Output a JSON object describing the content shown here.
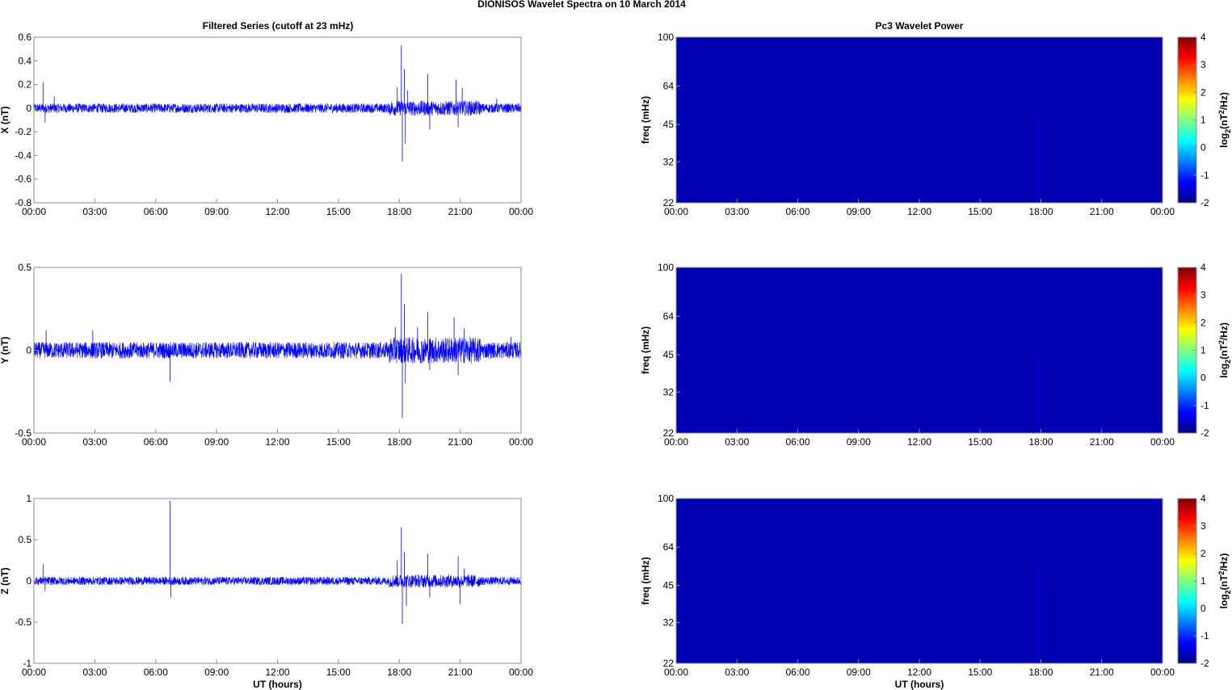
{
  "figure": {
    "title": "DIONISOS Wavelet Spectra on 10 March     2014",
    "left_column_title": "Filtered Series (cutoff at 23 mHz)",
    "right_column_title": "Pc3 Wavelet Power",
    "xlabel": "UT (hours)"
  },
  "chart_data": [
    {
      "type": "line",
      "name": "filtered-x",
      "ylabel": "X (nT)",
      "xlabel": "",
      "x_ticks": [
        "00:00",
        "03:00",
        "06:00",
        "09:00",
        "12:00",
        "15:00",
        "18:00",
        "21:00",
        "00:00"
      ],
      "xlim": [
        0,
        24
      ],
      "ylim": [
        -0.8,
        0.6
      ],
      "y_ticks": [
        -0.8,
        -0.6,
        -0.4,
        -0.2,
        0,
        0.2,
        0.4,
        0.6
      ],
      "y_tick_labels": [
        "-0.8",
        "-0.6",
        "-0.4",
        "-0.2",
        "0",
        "0.2",
        "0.4",
        "0.6"
      ],
      "series_color": "#0000ff",
      "baseline_amplitude": 0.04,
      "spikes": [
        {
          "x": 0.45,
          "y": 0.22
        },
        {
          "x": 0.55,
          "y": -0.12
        },
        {
          "x": 1.0,
          "y": 0.1
        },
        {
          "x": 17.9,
          "y": 0.18
        },
        {
          "x": 18.1,
          "y": 0.53
        },
        {
          "x": 18.15,
          "y": -0.45
        },
        {
          "x": 18.25,
          "y": 0.33
        },
        {
          "x": 18.3,
          "y": -0.3
        },
        {
          "x": 18.4,
          "y": 0.15
        },
        {
          "x": 19.4,
          "y": 0.29
        },
        {
          "x": 19.5,
          "y": -0.18
        },
        {
          "x": 20.8,
          "y": 0.24
        },
        {
          "x": 20.9,
          "y": -0.16
        },
        {
          "x": 21.1,
          "y": 0.17
        },
        {
          "x": 22.8,
          "y": 0.08
        }
      ]
    },
    {
      "type": "line",
      "name": "filtered-y",
      "ylabel": "Y (nT)",
      "xlabel": "",
      "x_ticks": [
        "00:00",
        "03:00",
        "06:00",
        "09:00",
        "12:00",
        "15:00",
        "18:00",
        "21:00",
        "00:00"
      ],
      "xlim": [
        0,
        24
      ],
      "ylim": [
        -0.5,
        0.5
      ],
      "y_ticks": [
        -0.5,
        0,
        0.5
      ],
      "y_tick_labels": [
        "-0.5",
        "0",
        "0.5"
      ],
      "series_color": "#0000ff",
      "baseline_amplitude": 0.05,
      "spikes": [
        {
          "x": 0.6,
          "y": 0.12
        },
        {
          "x": 6.7,
          "y": -0.19
        },
        {
          "x": 2.9,
          "y": 0.12
        },
        {
          "x": 17.8,
          "y": 0.14
        },
        {
          "x": 18.1,
          "y": 0.46
        },
        {
          "x": 18.15,
          "y": -0.41
        },
        {
          "x": 18.25,
          "y": 0.28
        },
        {
          "x": 18.3,
          "y": -0.2
        },
        {
          "x": 18.9,
          "y": 0.14
        },
        {
          "x": 19.4,
          "y": 0.23
        },
        {
          "x": 19.5,
          "y": -0.12
        },
        {
          "x": 20.7,
          "y": 0.2
        },
        {
          "x": 20.9,
          "y": -0.15
        },
        {
          "x": 21.2,
          "y": 0.13
        },
        {
          "x": 23.5,
          "y": 0.08
        }
      ]
    },
    {
      "type": "line",
      "name": "filtered-z",
      "ylabel": "Z (nT)",
      "xlabel": "UT (hours)",
      "x_ticks": [
        "00:00",
        "03:00",
        "06:00",
        "09:00",
        "12:00",
        "15:00",
        "18:00",
        "21:00",
        "00:00"
      ],
      "xlim": [
        0,
        24
      ],
      "ylim": [
        -1,
        1
      ],
      "y_ticks": [
        -1,
        -0.5,
        0,
        0.5,
        1
      ],
      "y_tick_labels": [
        "-1",
        "-0.5",
        "0",
        "0.5",
        "1"
      ],
      "series_color": "#0000ff",
      "baseline_amplitude": 0.05,
      "spikes": [
        {
          "x": 0.45,
          "y": 0.2
        },
        {
          "x": 0.55,
          "y": -0.12
        },
        {
          "x": 6.7,
          "y": 0.97
        },
        {
          "x": 6.75,
          "y": -0.2
        },
        {
          "x": 17.9,
          "y": 0.25
        },
        {
          "x": 18.1,
          "y": 0.65
        },
        {
          "x": 18.15,
          "y": -0.52
        },
        {
          "x": 18.25,
          "y": 0.35
        },
        {
          "x": 18.35,
          "y": -0.3
        },
        {
          "x": 19.4,
          "y": 0.33
        },
        {
          "x": 19.5,
          "y": -0.2
        },
        {
          "x": 20.9,
          "y": 0.3
        },
        {
          "x": 21.0,
          "y": -0.28
        },
        {
          "x": 21.2,
          "y": 0.15
        }
      ]
    },
    {
      "type": "heatmap",
      "name": "pc3-wavelet-power-1",
      "ylabel": "freq (mHz)",
      "xlabel": "",
      "x_ticks": [
        "00:00",
        "03:00",
        "06:00",
        "09:00",
        "12:00",
        "15:00",
        "18:00",
        "21:00",
        "00:00"
      ],
      "xlim": [
        0,
        24
      ],
      "ylim": [
        22,
        100
      ],
      "y_ticks": [
        22,
        32,
        45,
        64,
        100
      ],
      "y_tick_labels": [
        "22",
        "32",
        "45",
        "64",
        "100"
      ],
      "y_scale": "log",
      "fill_value": -1.7,
      "features": [
        {
          "x": 17.85,
          "f_min": 22,
          "f_max": 48,
          "value": -1.4
        }
      ],
      "colorbar": {
        "min": -2,
        "max": 4,
        "ticks": [
          -2,
          -1,
          0,
          1,
          2,
          3,
          4
        ],
        "tick_labels": [
          "-2",
          "-1",
          "0",
          "1",
          "2",
          "3",
          "4"
        ],
        "label_main": "log",
        "label_sub": "2",
        "label_tail": "(nT",
        "label_sup": "2",
        "label_end": "/Hz)"
      }
    },
    {
      "type": "heatmap",
      "name": "pc3-wavelet-power-2",
      "ylabel": "freq (mHz)",
      "xlabel": "",
      "x_ticks": [
        "00:00",
        "03:00",
        "06:00",
        "09:00",
        "12:00",
        "15:00",
        "18:00",
        "21:00",
        "00:00"
      ],
      "xlim": [
        0,
        24
      ],
      "ylim": [
        22,
        100
      ],
      "y_ticks": [
        22,
        32,
        45,
        64,
        100
      ],
      "y_tick_labels": [
        "22",
        "32",
        "45",
        "64",
        "100"
      ],
      "y_scale": "log",
      "fill_value": -1.7,
      "features": [
        {
          "x": 17.85,
          "f_min": 22,
          "f_max": 45,
          "value": -1.45
        }
      ],
      "colorbar": {
        "min": -2,
        "max": 4,
        "ticks": [
          -2,
          -1,
          0,
          1,
          2,
          3,
          4
        ],
        "tick_labels": [
          "-2",
          "-1",
          "0",
          "1",
          "2",
          "3",
          "4"
        ],
        "label_main": "log",
        "label_sub": "2",
        "label_tail": "(nT",
        "label_sup": "2",
        "label_end": "/Hz)"
      }
    },
    {
      "type": "heatmap",
      "name": "pc3-wavelet-power-3",
      "ylabel": "freq (mHz)",
      "xlabel": "UT (hours)",
      "x_ticks": [
        "00:00",
        "03:00",
        "06:00",
        "09:00",
        "12:00",
        "15:00",
        "18:00",
        "21:00",
        "00:00"
      ],
      "xlim": [
        0,
        24
      ],
      "ylim": [
        22,
        100
      ],
      "y_ticks": [
        22,
        32,
        45,
        64,
        100
      ],
      "y_tick_labels": [
        "22",
        "32",
        "45",
        "64",
        "100"
      ],
      "y_scale": "log",
      "fill_value": -1.7,
      "features": [
        {
          "x": 17.85,
          "f_min": 22,
          "f_max": 52,
          "value": -1.35
        }
      ],
      "colorbar": {
        "min": -2,
        "max": 4,
        "ticks": [
          -2,
          -1,
          0,
          1,
          2,
          3,
          4
        ],
        "tick_labels": [
          "-2",
          "-1",
          "0",
          "1",
          "2",
          "3",
          "4"
        ],
        "label_main": "log",
        "label_sub": "2",
        "label_tail": "(nT",
        "label_sup": "2",
        "label_end": "/Hz)"
      }
    }
  ]
}
